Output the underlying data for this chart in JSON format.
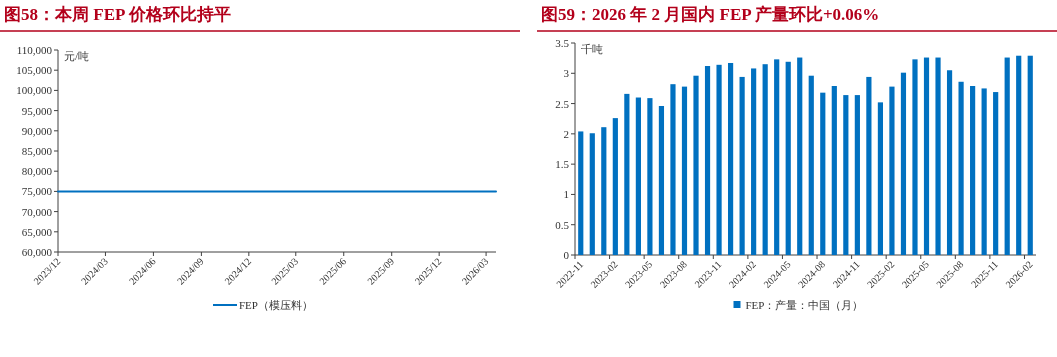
{
  "chart_data": [
    {
      "type": "line",
      "title": "图58：本周 FEP 价格环比持平",
      "ylabel": "元/吨",
      "x": [
        "2023-12-01",
        "2024-06-01",
        "2024-12-01",
        "2025-06-01",
        "2025-12-01",
        "2026-03-20"
      ],
      "series": [
        {
          "name": "FEP（模压料）",
          "color": "#0070c0",
          "values": [
            75000,
            75000,
            75000,
            75000,
            75000,
            75000
          ]
        }
      ],
      "xlim": [
        "2023-12-01",
        "2026-03-20"
      ],
      "xticks": [
        {
          "value": "2023-12-01",
          "label": "2023/12"
        },
        {
          "value": "2024-03-01",
          "label": "2024/03"
        },
        {
          "value": "2024-06-01",
          "label": "2024/06"
        },
        {
          "value": "2024-09-01",
          "label": "2024/09"
        },
        {
          "value": "2024-12-01",
          "label": "2024/12"
        },
        {
          "value": "2025-03-01",
          "label": "2025/03"
        },
        {
          "value": "2025-06-01",
          "label": "2025/06"
        },
        {
          "value": "2025-09-01",
          "label": "2025/09"
        },
        {
          "value": "2025-12-01",
          "label": "2025/12"
        },
        {
          "value": "2026-03-01",
          "label": "2026/03"
        }
      ],
      "ylim": [
        60000,
        110000
      ],
      "yticks": [
        {
          "value": 60000,
          "label": "60,000"
        },
        {
          "value": 65000,
          "label": "65,000"
        },
        {
          "value": 70000,
          "label": "70,000"
        },
        {
          "value": 75000,
          "label": "75,000"
        },
        {
          "value": 80000,
          "label": "80,000"
        },
        {
          "value": 85000,
          "label": "85,000"
        },
        {
          "value": 90000,
          "label": "90,000"
        },
        {
          "value": 95000,
          "label": "95,000"
        },
        {
          "value": 100000,
          "label": "100,000"
        },
        {
          "value": 105000,
          "label": "105,000"
        },
        {
          "value": 110000,
          "label": "110,000"
        }
      ],
      "legend": "bottom",
      "grid": false
    },
    {
      "type": "bar",
      "title": "图59：2026 年 2 月国内 FEP 产量环比+0.06%",
      "ylabel": "千吨",
      "categories": [
        "2022-11",
        null,
        null,
        "2023-02",
        null,
        null,
        "2023-05",
        null,
        null,
        "2023-08",
        null,
        null,
        "2023-11",
        null,
        null,
        "2024-02",
        null,
        null,
        "2024-05",
        null,
        null,
        "2024-08",
        null,
        null,
        "2024-11",
        null,
        null,
        "2025-02",
        null,
        null,
        "2025-05",
        null,
        null,
        "2025-08",
        null,
        null,
        "2025-11",
        null,
        null,
        "2026-02"
      ],
      "series": [
        {
          "name": "FEP：产量：中国（月）",
          "color": "#0070c0",
          "values": [
            2.04,
            2.01,
            2.11,
            2.26,
            2.66,
            2.6,
            2.59,
            2.46,
            2.82,
            2.78,
            2.96,
            3.12,
            3.14,
            3.17,
            2.94,
            3.08,
            3.15,
            3.23,
            3.19,
            3.26,
            2.96,
            2.68,
            2.79,
            2.64,
            2.64,
            2.94,
            2.52,
            2.78,
            3.01,
            3.23,
            3.26,
            3.26,
            3.05,
            2.86,
            2.79,
            2.75,
            2.69,
            3.26,
            3.29,
            3.29
          ]
        }
      ],
      "ylim": [
        0,
        3.5
      ],
      "yticks": [
        0,
        0.5,
        1,
        1.5,
        2,
        2.5,
        3,
        3.5
      ],
      "legend": "bottom",
      "grid": false
    }
  ]
}
